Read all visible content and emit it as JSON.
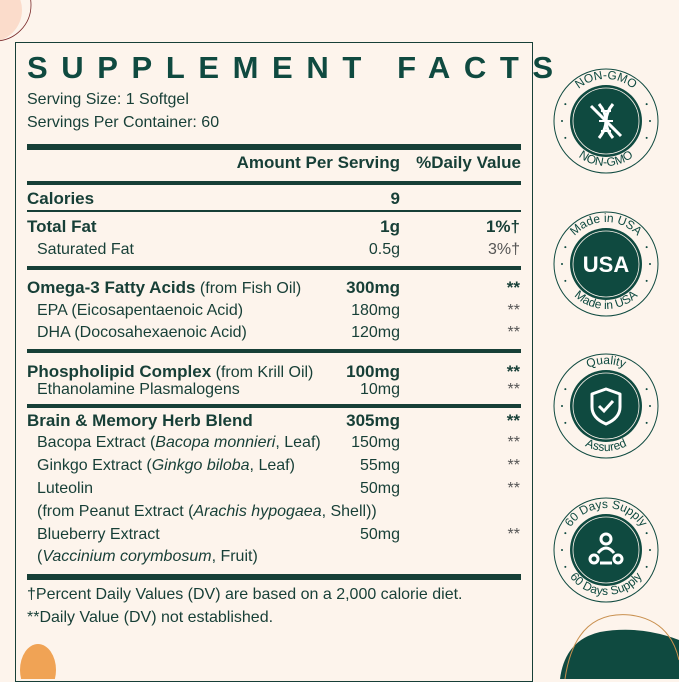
{
  "title": "SUPPLEMENT FACTS",
  "serving_size": "Serving Size: 1 Softgel",
  "servings_per_container": "Servings Per Container: 60",
  "header": {
    "amount": "Amount Per Serving",
    "dv": "%Daily Value"
  },
  "rows": [
    {
      "name": "Calories",
      "amount": "9",
      "dv": ""
    },
    {
      "name": "Total Fat",
      "amount": "1g",
      "dv": "1%†"
    },
    {
      "name": "Saturated Fat",
      "amount": "0.5g",
      "dv": "3%†"
    },
    {
      "name": "Omega-3 Fatty Acids",
      "suffix": " (from Fish Oil)",
      "amount": "300mg",
      "dv": "**"
    },
    {
      "name": "EPA (Eicosapentaenoic Acid)",
      "amount": "180mg",
      "dv": "**"
    },
    {
      "name": "DHA (Docosahexaenoic Acid)",
      "amount": "120mg",
      "dv": "**"
    },
    {
      "name": "Phospholipid Complex",
      "suffix": " (from Krill Oil)",
      "amount": "100mg",
      "dv": "**"
    },
    {
      "name": "Ethanolamine Plasmalogens",
      "amount": "10mg",
      "dv": "**"
    },
    {
      "name": "Brain & Memory Herb Blend",
      "amount": "305mg",
      "dv": "**"
    },
    {
      "name": "Bacopa Extract (",
      "italic": "Bacopa monnieri",
      "tail": ", Leaf)",
      "amount": "150mg",
      "dv": "**"
    },
    {
      "name": "Ginkgo Extract (",
      "italic": "Ginkgo biloba",
      "tail": ", Leaf)",
      "amount": "55mg",
      "dv": "**"
    },
    {
      "name": "Luteolin",
      "amount": "50mg",
      "dv": "**"
    },
    {
      "name": "(from Peanut Extract (",
      "italic": "Arachis hypogaea",
      "tail": ", Shell))"
    },
    {
      "name": "Blueberry Extract",
      "amount": "50mg",
      "dv": "**"
    },
    {
      "name": "(",
      "italic": "Vaccinium corymbosum",
      "tail": ", Fruit)"
    }
  ],
  "footnotes": [
    "†Percent Daily Values (DV) are based on a 2,000 calorie diet.",
    "**Daily Value (DV) not established."
  ],
  "badges": [
    {
      "top": "NON-GMO",
      "bottom": "NON-GMO",
      "icon": "dna-crossed-icon"
    },
    {
      "top": "Made in USA",
      "bottom": "Made in USA",
      "center": "USA"
    },
    {
      "top": "Quality",
      "bottom": "Assured",
      "icon": "shield-check-icon"
    },
    {
      "top": "60 Days Supply",
      "bottom": "60 Days Supply",
      "icon": "community-icon"
    }
  ],
  "colors": {
    "background": "#fdf4ec",
    "brand_green": "#0f4a40",
    "accent_orange": "#f0a355"
  }
}
